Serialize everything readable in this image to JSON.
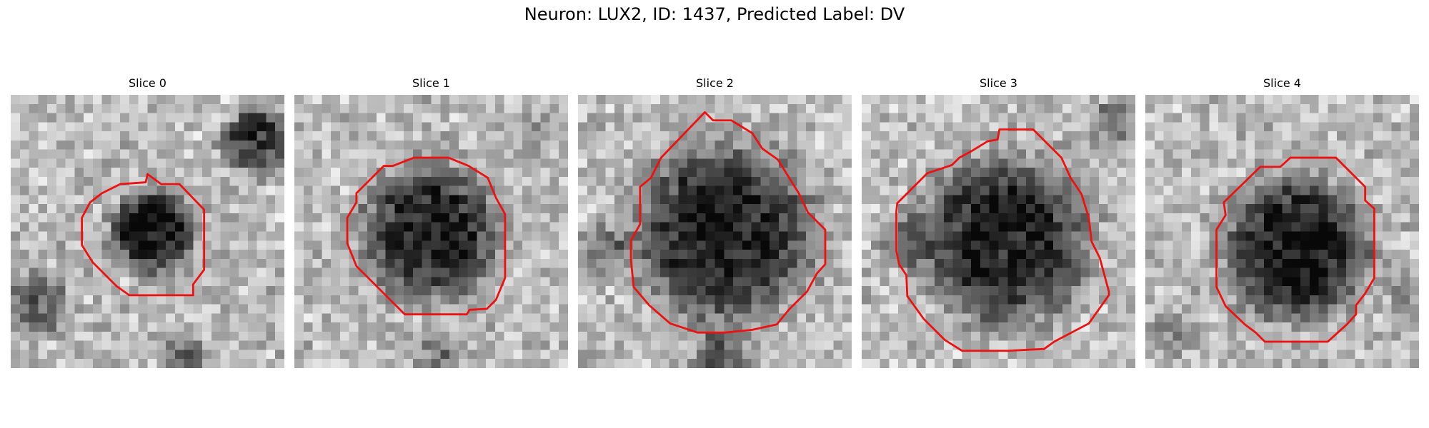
{
  "figure": {
    "title": "Neuron: LUX2, ID: 1437, Predicted Label: DV"
  },
  "slices": [
    {
      "label": "Slice 0"
    },
    {
      "label": "Slice 1"
    },
    {
      "label": "Slice 2"
    },
    {
      "label": "Slice 3"
    },
    {
      "label": "Slice 4"
    }
  ],
  "colors": {
    "contour": "#ee1111",
    "image_colormap": "grayscale"
  }
}
